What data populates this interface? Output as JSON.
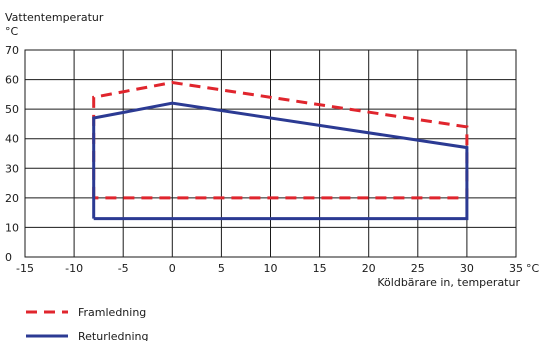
{
  "chart_data": {
    "type": "line",
    "ylabel_line1": "Vattentemperatur",
    "ylabel_line2": "°C",
    "xlabel": "Köldbärare in, temperatur",
    "x_unit": "°C",
    "xlim": [
      -15,
      35
    ],
    "ylim": [
      0,
      70
    ],
    "x_ticks": [
      -15,
      -10,
      -5,
      0,
      5,
      10,
      15,
      20,
      25,
      30,
      35
    ],
    "y_ticks": [
      0,
      10,
      20,
      30,
      40,
      50,
      60,
      70
    ],
    "x_tick_labels": [
      "-15",
      "-10",
      "-5",
      "0",
      "5",
      "10",
      "15",
      "20",
      "25",
      "30",
      "35"
    ],
    "y_tick_labels": [
      "0",
      "10",
      "20",
      "30",
      "40",
      "50",
      "60",
      "70"
    ],
    "grid": true,
    "legend_position": "bottom-left",
    "series": [
      {
        "name": "Framledning",
        "color": "#e0252d",
        "dash": "dashed",
        "points": [
          [
            -8,
            20
          ],
          [
            -8,
            54
          ],
          [
            0,
            59
          ],
          [
            30,
            44
          ],
          [
            30,
            20
          ],
          [
            -8,
            20
          ]
        ]
      },
      {
        "name": "Returledning",
        "color": "#2b3a93",
        "dash": "solid",
        "points": [
          [
            -8,
            13
          ],
          [
            -8,
            47
          ],
          [
            0,
            52
          ],
          [
            30,
            37
          ],
          [
            30,
            13
          ],
          [
            -8,
            13
          ]
        ]
      }
    ]
  }
}
